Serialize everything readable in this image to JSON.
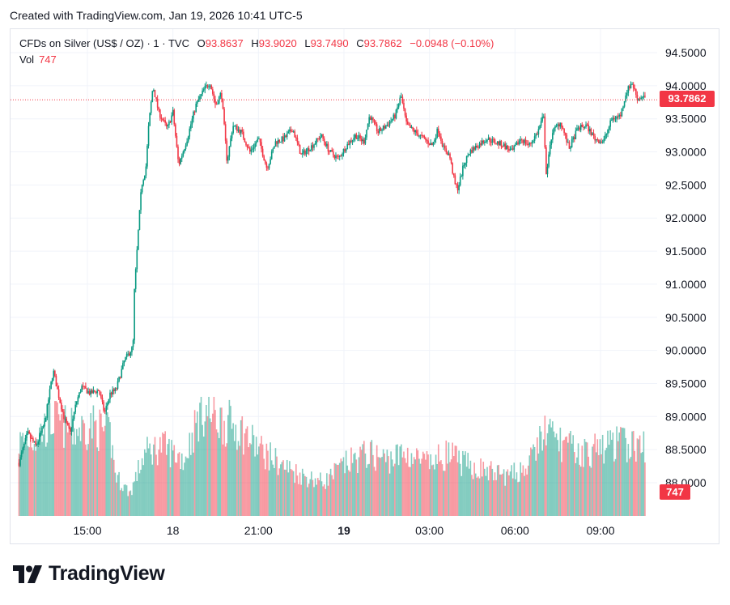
{
  "header": {
    "created": "Created with TradingView.com, Jan 19, 2026 10:41 UTC-5"
  },
  "legend": {
    "symbol": "CFDs on Silver (US$ / OZ) · 1 · TVC",
    "open_label": "O",
    "open": "93.8637",
    "high_label": "H",
    "high": "93.9020",
    "low_label": "L",
    "low": "93.7490",
    "close_label": "C",
    "close": "93.7862",
    "change": "−0.0948 (−0.10%)",
    "vol_label": "Vol",
    "vol": "747"
  },
  "price_tag": "93.7862",
  "volume_tag": "747",
  "brand": {
    "name": "TradingView",
    "logo": "tradingview-logo"
  },
  "colors": {
    "up": "#089981",
    "down": "#f23645",
    "grid": "#f0f3fa",
    "text": "#131722"
  },
  "chart_data": {
    "type": "candlestick",
    "symbol": "CFDs on Silver (US$ / OZ)",
    "interval": "1",
    "y_ticks": [
      "94.5000",
      "94.0000",
      "93.5000",
      "93.0000",
      "92.5000",
      "92.0000",
      "91.5000",
      "91.0000",
      "90.5000",
      "90.0000",
      "89.5000",
      "89.0000",
      "88.5000",
      "88.0000"
    ],
    "ylim": [
      87.55,
      94.85
    ],
    "x_ticks": [
      {
        "label": "15:00",
        "bold": false
      },
      {
        "label": "18",
        "bold": false
      },
      {
        "label": "21:00",
        "bold": false
      },
      {
        "label": "19",
        "bold": true
      },
      {
        "label": "03:00",
        "bold": false
      },
      {
        "label": "06:00",
        "bold": false
      },
      {
        "label": "09:00",
        "bold": false
      }
    ],
    "x_tick_hours": [
      15,
      18,
      21,
      24,
      27,
      30,
      33
    ],
    "xlim_hours": [
      12.5,
      34.7
    ],
    "last_price": 93.7862,
    "last_volume": 747,
    "price_path": [
      [
        12.6,
        88.3
      ],
      [
        12.9,
        88.75
      ],
      [
        13.2,
        88.55
      ],
      [
        13.5,
        88.9
      ],
      [
        13.8,
        89.7
      ],
      [
        14.0,
        89.3
      ],
      [
        14.2,
        88.95
      ],
      [
        14.4,
        88.75
      ],
      [
        14.6,
        89.2
      ],
      [
        14.8,
        89.45
      ],
      [
        15.1,
        89.35
      ],
      [
        15.4,
        89.4
      ],
      [
        15.6,
        89.05
      ],
      [
        15.8,
        89.35
      ],
      [
        16.0,
        89.4
      ],
      [
        16.3,
        89.85
      ],
      [
        16.6,
        90.05
      ],
      [
        16.65,
        90.9
      ],
      [
        16.8,
        91.9
      ],
      [
        16.9,
        92.5
      ],
      [
        17.05,
        92.75
      ],
      [
        17.15,
        93.4
      ],
      [
        17.3,
        94.0
      ],
      [
        17.5,
        93.6
      ],
      [
        17.8,
        93.35
      ],
      [
        18.0,
        93.6
      ],
      [
        18.2,
        92.8
      ],
      [
        18.5,
        93.2
      ],
      [
        18.8,
        93.7
      ],
      [
        19.1,
        93.95
      ],
      [
        19.3,
        94.05
      ],
      [
        19.5,
        93.7
      ],
      [
        19.7,
        93.9
      ],
      [
        19.9,
        92.85
      ],
      [
        20.1,
        93.4
      ],
      [
        20.4,
        93.3
      ],
      [
        20.7,
        93.0
      ],
      [
        21.0,
        93.2
      ],
      [
        21.3,
        92.75
      ],
      [
        21.6,
        93.15
      ],
      [
        21.9,
        93.2
      ],
      [
        22.2,
        93.35
      ],
      [
        22.5,
        92.95
      ],
      [
        22.9,
        93.1
      ],
      [
        23.2,
        93.25
      ],
      [
        23.5,
        93.0
      ],
      [
        23.8,
        92.9
      ],
      [
        24.1,
        93.1
      ],
      [
        24.4,
        93.25
      ],
      [
        24.7,
        93.15
      ],
      [
        24.9,
        93.55
      ],
      [
        25.2,
        93.3
      ],
      [
        25.5,
        93.4
      ],
      [
        25.8,
        93.55
      ],
      [
        26.0,
        93.85
      ],
      [
        26.2,
        93.4
      ],
      [
        26.5,
        93.3
      ],
      [
        26.8,
        93.2
      ],
      [
        27.1,
        93.1
      ],
      [
        27.3,
        93.35
      ],
      [
        27.5,
        93.05
      ],
      [
        27.7,
        92.95
      ],
      [
        27.9,
        92.5
      ],
      [
        28.0,
        92.45
      ],
      [
        28.2,
        92.8
      ],
      [
        28.4,
        93.0
      ],
      [
        28.7,
        93.1
      ],
      [
        29.0,
        93.2
      ],
      [
        29.3,
        93.15
      ],
      [
        29.6,
        93.1
      ],
      [
        29.9,
        93.0
      ],
      [
        30.2,
        93.2
      ],
      [
        30.5,
        93.1
      ],
      [
        30.8,
        93.3
      ],
      [
        31.0,
        93.55
      ],
      [
        31.1,
        92.65
      ],
      [
        31.3,
        93.3
      ],
      [
        31.6,
        93.45
      ],
      [
        31.9,
        93.05
      ],
      [
        32.2,
        93.35
      ],
      [
        32.5,
        93.4
      ],
      [
        32.8,
        93.2
      ],
      [
        33.1,
        93.15
      ],
      [
        33.4,
        93.5
      ],
      [
        33.7,
        93.55
      ],
      [
        33.9,
        93.9
      ],
      [
        34.1,
        94.05
      ],
      [
        34.3,
        93.8
      ],
      [
        34.5,
        93.85
      ],
      [
        34.6,
        93.79
      ]
    ],
    "volume_level_path": [
      [
        12.6,
        0.65
      ],
      [
        13.2,
        0.7
      ],
      [
        13.8,
        0.85
      ],
      [
        14.5,
        0.75
      ],
      [
        15.2,
        0.8
      ],
      [
        15.8,
        0.72
      ],
      [
        16.0,
        0.35
      ],
      [
        16.5,
        0.2
      ],
      [
        17.0,
        0.55
      ],
      [
        17.6,
        0.62
      ],
      [
        18.4,
        0.5
      ],
      [
        19.0,
        0.95
      ],
      [
        19.6,
        0.85
      ],
      [
        20.3,
        0.78
      ],
      [
        21.0,
        0.6
      ],
      [
        21.8,
        0.45
      ],
      [
        22.6,
        0.35
      ],
      [
        23.3,
        0.3
      ],
      [
        24.0,
        0.45
      ],
      [
        24.8,
        0.55
      ],
      [
        25.5,
        0.5
      ],
      [
        26.2,
        0.55
      ],
      [
        27.0,
        0.45
      ],
      [
        27.6,
        0.55
      ],
      [
        28.3,
        0.45
      ],
      [
        29.0,
        0.4
      ],
      [
        29.8,
        0.35
      ],
      [
        30.5,
        0.45
      ],
      [
        31.0,
        0.75
      ],
      [
        31.6,
        0.65
      ],
      [
        32.3,
        0.55
      ],
      [
        33.0,
        0.6
      ],
      [
        33.6,
        0.65
      ],
      [
        34.6,
        0.6
      ]
    ]
  }
}
